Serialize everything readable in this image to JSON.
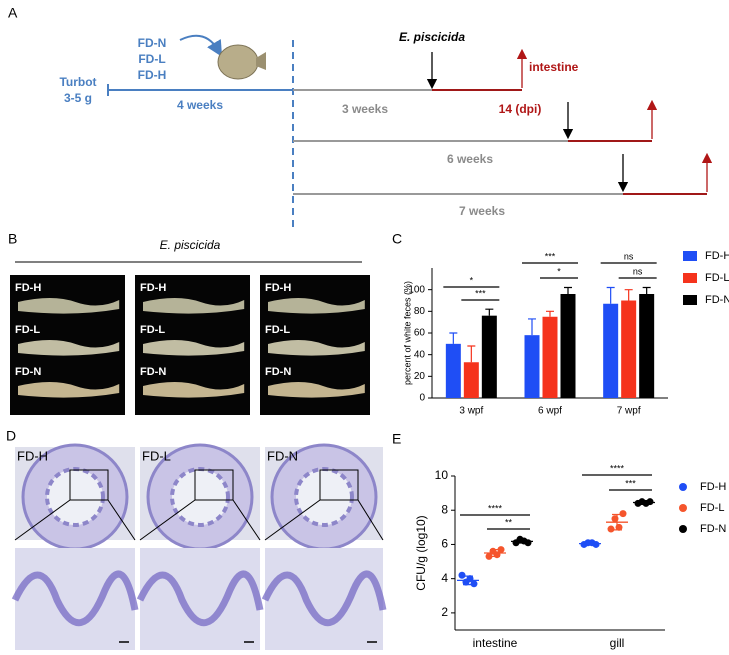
{
  "panel_a": {
    "label": "A",
    "start_line1": "Turbot",
    "start_line2": "3-5 g",
    "diets": [
      "FD-N",
      "FD-L",
      "FD-H"
    ],
    "feeding": "4 weeks",
    "pathogen": "E. piscicida",
    "sample": "intestine",
    "rows": [
      "3 weeks",
      "6 weeks",
      "7 weeks"
    ],
    "dpi": "14  (dpi)"
  },
  "panel_b": {
    "label": "B",
    "title": "E. piscicida",
    "groups": [
      "FD-H",
      "FD-L",
      "FD-N"
    ]
  },
  "panel_c": {
    "label": "C"
  },
  "panel_d": {
    "label": "D",
    "groups": [
      "FD-H",
      "FD-L",
      "FD-N"
    ]
  },
  "panel_e": {
    "label": "E"
  },
  "chart_data": [
    {
      "type": "bar",
      "ylabel": "percent of white feces (%)",
      "categories": [
        "3 wpf",
        "6 wpf",
        "7 wpf"
      ],
      "series": [
        {
          "name": "FD-H",
          "color": "#1f4ef5",
          "values": [
            50,
            58,
            87
          ],
          "errors": [
            10,
            15,
            15
          ]
        },
        {
          "name": "FD-L",
          "color": "#f5331c",
          "values": [
            33,
            75,
            90
          ],
          "errors": [
            15,
            5,
            10
          ]
        },
        {
          "name": "FD-N",
          "color": "#000000",
          "values": [
            76,
            96,
            96
          ],
          "errors": [
            6,
            6,
            6
          ]
        }
      ],
      "ylim": [
        0,
        120
      ],
      "yticks": [
        0,
        20,
        40,
        60,
        80,
        100
      ],
      "legend": "right",
      "annotations": [
        "*",
        "***",
        "***",
        "*",
        "ns",
        "ns"
      ]
    },
    {
      "type": "dot",
      "ylabel": "CFU/g (log10)",
      "categories": [
        "intestine",
        "gill"
      ],
      "series": [
        {
          "name": "FD-H",
          "color": "#1f4ef5",
          "values": [
            [
              4.2,
              3.8,
              4.0,
              3.7
            ],
            [
              6.0,
              6.1,
              6.1,
              6.0
            ]
          ],
          "means": [
            3.9,
            6.05
          ],
          "sds": [
            0.25,
            0.08
          ]
        },
        {
          "name": "FD-L",
          "color": "#f5552c",
          "values": [
            [
              5.3,
              5.6,
              5.4,
              5.7
            ],
            [
              6.9,
              7.5,
              7.0,
              7.8
            ]
          ],
          "means": [
            5.5,
            7.3
          ],
          "sds": [
            0.2,
            0.45
          ]
        },
        {
          "name": "FD-N",
          "color": "#000000",
          "values": [
            [
              6.1,
              6.3,
              6.2,
              6.1
            ],
            [
              8.4,
              8.5,
              8.4,
              8.5
            ]
          ],
          "means": [
            6.18,
            8.45
          ],
          "sds": [
            0.1,
            0.06
          ]
        }
      ],
      "ylim": [
        1,
        10
      ],
      "yticks": [
        2,
        4,
        6,
        8,
        10
      ],
      "legend": "right",
      "annotations": [
        "****",
        "**",
        "****",
        "***"
      ]
    }
  ]
}
